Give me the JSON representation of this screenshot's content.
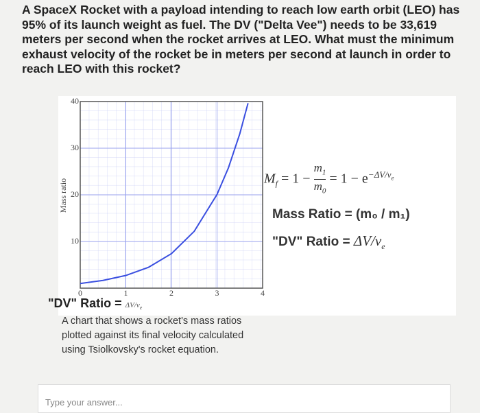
{
  "question": "A SpaceX Rocket with a payload intending to reach low earth orbit (LEO) has 95% of its launch weight as fuel. The DV (\"Delta Vee\") needs to be 33,619 meters per second when the rocket arrives at LEO. What must the minimum exhaust velocity of the rocket be in meters per second at launch in order to reach LEO with this rocket?",
  "chart_data": {
    "type": "line",
    "y_label": "Mass ratio",
    "x": [
      0,
      0.5,
      1,
      1.5,
      2,
      2.5,
      3,
      3.25,
      3.5,
      3.68
    ],
    "series": [
      {
        "color": "#3a4fe0",
        "values": [
          1,
          1.65,
          2.72,
          4.48,
          7.39,
          12.18,
          20.09,
          25.79,
          33.12,
          39.65
        ]
      }
    ],
    "xlim": [
      0,
      4
    ],
    "ylim": [
      0,
      40
    ],
    "xticks": [
      0,
      1,
      2,
      3,
      4
    ],
    "yticks": [
      10,
      20,
      30,
      40
    ],
    "grid": true,
    "x_label": {
      "text": "\"DV\" Ratio =",
      "ratio": "ΔV/v",
      "ratio_sub": "e"
    }
  },
  "formula": {
    "lhs": "M",
    "lhs_sub": "f",
    "eq1": "= 1 −",
    "num": "m",
    "num_sub": "1",
    "den": "m",
    "den_sub": "0",
    "eq2": "= 1 − e",
    "exp": "−ΔV/v",
    "exp_sub": "e"
  },
  "mass_ratio": {
    "label": "Mass Ratio",
    "value": "= (m₀ / m₁)"
  },
  "dv_ratio": {
    "label": "\"DV\" Ratio",
    "eq": "=",
    "ratio": "ΔV/v",
    "ratio_sub": "e"
  },
  "caption": "A chart that shows a rocket's mass ratios plotted against its final velocity calculated using Tsiolkovsky's rocket equation.",
  "answer_placeholder": "Type your answer..."
}
